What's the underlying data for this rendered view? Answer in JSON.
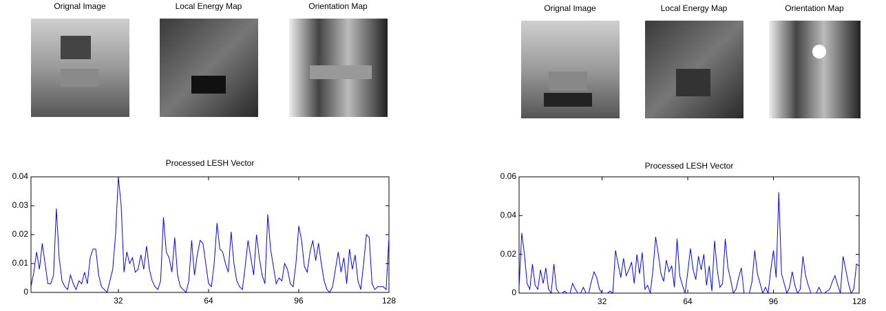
{
  "image_panels": [
    {
      "titles": [
        "Orignal Image",
        "Local Energy Map",
        "Orientation Map"
      ]
    },
    {
      "titles": [
        "Orignal Image",
        "Local Energy Map",
        "Orientation Map"
      ]
    }
  ],
  "chart_data": [
    {
      "type": "line",
      "title": "Processed LESH Vector",
      "color": "#0000ff",
      "x": [
        1,
        2,
        3,
        4,
        5,
        6,
        7,
        8,
        9,
        10,
        11,
        12,
        13,
        14,
        15,
        16,
        17,
        18,
        19,
        20,
        21,
        22,
        23,
        24,
        25,
        26,
        27,
        28,
        29,
        30,
        31,
        32,
        33,
        34,
        35,
        36,
        37,
        38,
        39,
        40,
        41,
        42,
        43,
        44,
        45,
        46,
        47,
        48,
        49,
        50,
        51,
        52,
        53,
        54,
        55,
        56,
        57,
        58,
        59,
        60,
        61,
        62,
        63,
        64,
        65,
        66,
        67,
        68,
        69,
        70,
        71,
        72,
        73,
        74,
        75,
        76,
        77,
        78,
        79,
        80,
        81,
        82,
        83,
        84,
        85,
        86,
        87,
        88,
        89,
        90,
        91,
        92,
        93,
        94,
        95,
        96,
        97,
        98,
        99,
        100,
        101,
        102,
        103,
        104,
        105,
        106,
        107,
        108,
        109,
        110,
        111,
        112,
        113,
        114,
        115,
        116,
        117,
        118,
        119,
        120,
        121,
        122,
        123,
        124,
        125,
        126,
        127,
        128
      ],
      "values": [
        0.002,
        0.007,
        0.014,
        0.008,
        0.017,
        0.01,
        0.003,
        0.003,
        0.006,
        0.029,
        0.012,
        0.004,
        0.002,
        0.001,
        0.006,
        0.003,
        0.001,
        0.004,
        0.003,
        0.007,
        0.003,
        0.012,
        0.015,
        0.015,
        0.006,
        0.002,
        0.001,
        0.0,
        0.004,
        0.008,
        0.02,
        0.04,
        0.03,
        0.007,
        0.014,
        0.01,
        0.012,
        0.007,
        0.008,
        0.013,
        0.008,
        0.016,
        0.008,
        0.004,
        0.002,
        0.001,
        0.004,
        0.026,
        0.014,
        0.012,
        0.007,
        0.019,
        0.006,
        0.002,
        0.001,
        0.0,
        0.004,
        0.018,
        0.006,
        0.013,
        0.018,
        0.017,
        0.01,
        0.003,
        0.002,
        0.01,
        0.024,
        0.015,
        0.014,
        0.01,
        0.007,
        0.021,
        0.01,
        0.004,
        0.002,
        0.001,
        0.009,
        0.018,
        0.012,
        0.006,
        0.02,
        0.012,
        0.006,
        0.003,
        0.027,
        0.015,
        0.009,
        0.003,
        0.005,
        0.004,
        0.01,
        0.008,
        0.003,
        0.002,
        0.01,
        0.023,
        0.018,
        0.009,
        0.007,
        0.014,
        0.018,
        0.011,
        0.017,
        0.01,
        0.004,
        0.001,
        0.0,
        0.002,
        0.008,
        0.014,
        0.007,
        0.012,
        0.003,
        0.015,
        0.008,
        0.013,
        0.004,
        0.001,
        0.01,
        0.02,
        0.019,
        0.003,
        0.001,
        0.002,
        0.002,
        0.002,
        0.001,
        0.019
      ],
      "xlim": [
        1,
        128
      ],
      "xticks": [
        32,
        64,
        96,
        128
      ],
      "ylim": [
        0,
        0.04
      ],
      "yticks": [
        0,
        0.01,
        0.02,
        0.03,
        0.04
      ]
    },
    {
      "type": "line",
      "title": "Processed LESH Vector",
      "color": "#0000ff",
      "x": [
        1,
        2,
        3,
        4,
        5,
        6,
        7,
        8,
        9,
        10,
        11,
        12,
        13,
        14,
        15,
        16,
        17,
        18,
        19,
        20,
        21,
        22,
        23,
        24,
        25,
        26,
        27,
        28,
        29,
        30,
        31,
        32,
        33,
        34,
        35,
        36,
        37,
        38,
        39,
        40,
        41,
        42,
        43,
        44,
        45,
        46,
        47,
        48,
        49,
        50,
        51,
        52,
        53,
        54,
        55,
        56,
        57,
        58,
        59,
        60,
        61,
        62,
        63,
        64,
        65,
        66,
        67,
        68,
        69,
        70,
        71,
        72,
        73,
        74,
        75,
        76,
        77,
        78,
        79,
        80,
        81,
        82,
        83,
        84,
        85,
        86,
        87,
        88,
        89,
        90,
        91,
        92,
        93,
        94,
        95,
        96,
        97,
        98,
        99,
        100,
        101,
        102,
        103,
        104,
        105,
        106,
        107,
        108,
        109,
        110,
        111,
        112,
        113,
        114,
        115,
        116,
        117,
        118,
        119,
        120,
        121,
        122,
        123,
        124,
        125,
        126,
        127,
        128
      ],
      "values": [
        0.003,
        0.031,
        0.02,
        0.005,
        0.002,
        0.015,
        0.004,
        0.002,
        0.012,
        0.005,
        0.013,
        0.002,
        0.0,
        0.015,
        0.002,
        0.0,
        0.0,
        0.001,
        0.0,
        0.0,
        0.005,
        0.002,
        0.0,
        0.0,
        0.003,
        0.0,
        0.0,
        0.006,
        0.011,
        0.008,
        0.002,
        0.0,
        0.0,
        0.0,
        0.001,
        0.0,
        0.022,
        0.015,
        0.008,
        0.018,
        0.009,
        0.012,
        0.016,
        0.005,
        0.02,
        0.01,
        0.021,
        0.002,
        0.004,
        0.0,
        0.012,
        0.029,
        0.02,
        0.01,
        0.006,
        0.017,
        0.011,
        0.014,
        0.003,
        0.028,
        0.009,
        0.004,
        0.0,
        0.011,
        0.023,
        0.012,
        0.007,
        0.019,
        0.012,
        0.02,
        0.004,
        0.014,
        0.001,
        0.027,
        0.012,
        0.003,
        0.005,
        0.028,
        0.013,
        0.007,
        0.0,
        0.002,
        0.008,
        0.013,
        0.0,
        0.0,
        0.0,
        0.006,
        0.022,
        0.01,
        0.005,
        0.0,
        0.003,
        0.0,
        0.012,
        0.022,
        0.008,
        0.052,
        0.01,
        0.005,
        0.0,
        0.003,
        0.011,
        0.004,
        0.0,
        0.002,
        0.019,
        0.009,
        0.004,
        0.0,
        0.0,
        0.0,
        0.003,
        0.0,
        0.0,
        0.001,
        0.002,
        0.006,
        0.009,
        0.004,
        0.0,
        0.019,
        0.012,
        0.005,
        0.0,
        0.002,
        0.015,
        0.014
      ],
      "xlim": [
        1,
        128
      ],
      "xticks": [
        32,
        64,
        96,
        128
      ],
      "ylim": [
        0,
        0.06
      ],
      "yticks": [
        0,
        0.02,
        0.04,
        0.06
      ]
    }
  ]
}
